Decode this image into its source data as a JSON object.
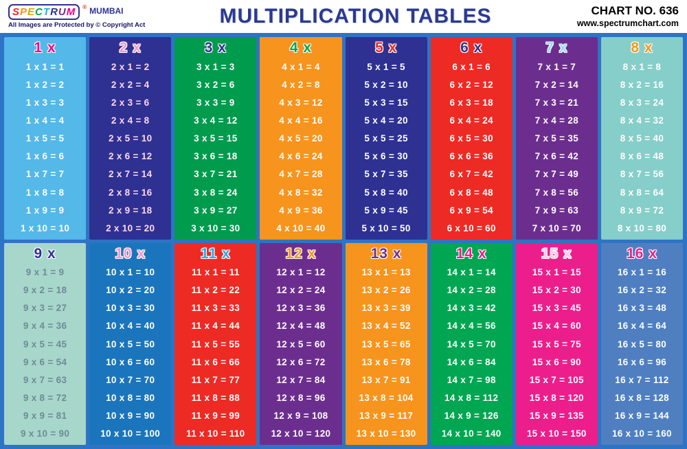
{
  "header": {
    "brand": "SPECTRUM",
    "brand_reg": "®",
    "brand_sub": "MUMBAI",
    "brand_letters": [
      {
        "ch": "S",
        "color": "#EE2A24"
      },
      {
        "ch": "P",
        "color": "#F7941D"
      },
      {
        "ch": "E",
        "color": "#D6A800"
      },
      {
        "ch": "C",
        "color": "#00A651"
      },
      {
        "ch": "T",
        "color": "#29ABE2"
      },
      {
        "ch": "R",
        "color": "#2E3192"
      },
      {
        "ch": "U",
        "color": "#6C2E8E"
      },
      {
        "ch": "M",
        "color": "#EC008C"
      }
    ],
    "copyright": "All Images are Protected by © Copyright Act",
    "title": "MULTIPLICATION TABLES",
    "chart_no": "CHART NO. 636",
    "website": "www.spectrumchart.com"
  },
  "colors": {
    "poster_background": "#2E74C4",
    "header_background": "#FFFFFF",
    "title_color": "#2B3990"
  },
  "tables": [
    {
      "label": "1 x",
      "bg": "#54B8E9",
      "header_color": "#EC008C",
      "text_color": "#FFFFFF",
      "rows": [
        "1 x 1 = 1",
        "1 x 2 = 2",
        "1 x 3 = 3",
        "1 x 4 = 4",
        "1 x 5 = 5",
        "1 x 6 = 6",
        "1 x 7 = 7",
        "1 x 8 = 8",
        "1 x 9 = 9",
        "1 x 10 = 10"
      ]
    },
    {
      "label": "2 x",
      "bg": "#2E3192",
      "header_color": "#F498C5",
      "text_color": "#FFD7EC",
      "rows": [
        "2 x 1 = 2",
        "2 x 2 = 4",
        "2 x 3 = 6",
        "2 x 4 = 8",
        "2 x 5 = 10",
        "2 x 6 = 12",
        "2 x 7 = 14",
        "2 x 8 = 16",
        "2 x 9 = 18",
        "2 x 10 = 20"
      ]
    },
    {
      "label": "3 x",
      "bg": "#009B4D",
      "header_color": "#2E3192",
      "text_color": "#FFFFFF",
      "rows": [
        "3 x 1 = 3",
        "3 x 2 = 6",
        "3 x 3 = 9",
        "3 x 4 = 12",
        "3 x 5 = 15",
        "3 x 6 = 18",
        "3 x 7 = 21",
        "3 x 8 = 24",
        "3 x 9 = 27",
        "3 x 10 = 30"
      ]
    },
    {
      "label": "4 x",
      "bg": "#F7941D",
      "header_color": "#00A651",
      "text_color": "#FFFFFF",
      "rows": [
        "4 x 1 = 4",
        "4 x 2 = 8",
        "4 x 3 = 12",
        "4 x 4 = 16",
        "4 x 5 = 20",
        "4 x 6 = 24",
        "4 x 7 = 28",
        "4 x 8 = 32",
        "4 x 9 = 36",
        "4 x 10 = 40"
      ]
    },
    {
      "label": "5 x",
      "bg": "#2E3192",
      "header_color": "#EE2A24",
      "text_color": "#FFFFFF",
      "rows": [
        "5 x 1 = 5",
        "5 x 2 = 10",
        "5 x 3 = 15",
        "5 x 4 = 20",
        "5 x 5 = 25",
        "5 x 6 = 30",
        "5 x 7 = 35",
        "5 x 8 = 40",
        "5 x 9 = 45",
        "5 x 10 = 50"
      ]
    },
    {
      "label": "6 x",
      "bg": "#EE2A24",
      "header_color": "#2E3192",
      "text_color": "#FFFFFF",
      "rows": [
        "6 x 1 = 6",
        "6 x 2 = 12",
        "6 x 3 = 18",
        "6 x 4 = 24",
        "6 x 5 = 30",
        "6 x 6 = 36",
        "6 x 7 = 42",
        "6 x 8 = 48",
        "6 x 9 = 54",
        "6 x 10 = 60"
      ]
    },
    {
      "label": "7 x",
      "bg": "#6C2E8E",
      "header_color": "#8ED8F8",
      "text_color": "#FFFFFF",
      "rows": [
        "7 x 1 = 7",
        "7 x 2 = 14",
        "7 x 3 = 21",
        "7 x 4 = 28",
        "7 x 5 = 35",
        "7 x 6 = 42",
        "7 x 7 = 49",
        "7 x 8 = 56",
        "7 x 9 = 63",
        "7 x 10 = 70"
      ]
    },
    {
      "label": "8 x",
      "bg": "#86CEC9",
      "header_color": "#F7941D",
      "text_color": "#FFFFFF",
      "rows": [
        "8 x 1 = 8",
        "8 x 2 = 16",
        "8 x 3 = 24",
        "8 x 4 = 32",
        "8 x 5 = 40",
        "8 x 6 = 48",
        "8 x 7 = 56",
        "8 x 8 = 64",
        "8 x 9 = 72",
        "8 x 10 = 80"
      ]
    },
    {
      "label": "9 x",
      "bg": "#A7D6CB",
      "header_color": "#2E3192",
      "text_color": "#6E8B96",
      "rows": [
        "9 x 1 = 9",
        "9 x 2 = 18",
        "9 x 3 = 27",
        "9 x 4 = 36",
        "9 x 5 = 45",
        "9 x 6 = 54",
        "9 x 7 = 63",
        "9 x 8 = 72",
        "9 x 9 = 81",
        "9 x 10 = 90"
      ]
    },
    {
      "label": "10 x",
      "bg": "#1B75BC",
      "header_color": "#F498C5",
      "text_color": "#FFFFFF",
      "rows": [
        "10 x 1 = 10",
        "10 x 2 = 20",
        "10 x 3 = 30",
        "10 x 4 = 40",
        "10 x 5 = 50",
        "10 x 6 = 60",
        "10 x 7 = 70",
        "10 x 8 = 80",
        "10 x 9 = 90",
        "10 x 10 = 100"
      ]
    },
    {
      "label": "11 x",
      "bg": "#EE2A24",
      "header_color": "#29ABE2",
      "text_color": "#FFFFFF",
      "rows": [
        "11 x 1 = 11",
        "11 x 2 = 22",
        "11 x 3 = 33",
        "11 x 4 = 44",
        "11 x 5 = 55",
        "11 x 6 = 66",
        "11 x 7 = 77",
        "11 x 8 = 88",
        "11 x 9 = 99",
        "11 x 10 = 110"
      ]
    },
    {
      "label": "12 x",
      "bg": "#6C2E8E",
      "header_color": "#F7941D",
      "text_color": "#FFFFFF",
      "rows": [
        "12 x 1 = 12",
        "12 x 2 = 24",
        "12 x 3 = 36",
        "12 x 4 = 48",
        "12 x 5 = 60",
        "12 x 6 = 72",
        "12 x 7 = 84",
        "12 x 8 = 96",
        "12 x 9 = 108",
        "12 x 10 = 120"
      ]
    },
    {
      "label": "13 x",
      "bg": "#F7941D",
      "header_color": "#6C2E8E",
      "text_color": "#FFFFFF",
      "rows": [
        "13 x 1 = 13",
        "13 x 2 = 26",
        "13 x 3 = 39",
        "13 x 4 = 52",
        "13 x 5 = 65",
        "13 x 6 = 78",
        "13 x 7 = 91",
        "13 x 8 = 104",
        "13 x 9 = 117",
        "13 x 10 = 130"
      ]
    },
    {
      "label": "14 x",
      "bg": "#00A651",
      "header_color": "#EC1E8C",
      "text_color": "#FFFFFF",
      "rows": [
        "14 x 1 = 14",
        "14 x 2 = 28",
        "14 x 3 = 42",
        "14 x 4 = 56",
        "14 x 5 = 70",
        "14 x 6 = 84",
        "14 x 7 = 98",
        "14 x 8 = 112",
        "14 x 9 = 126",
        "14 x 10 = 140"
      ]
    },
    {
      "label": "15 x",
      "bg": "#EC1E8C",
      "header_color": "#F9C9E5",
      "text_color": "#FFFFFF",
      "rows": [
        "15 x 1 = 15",
        "15 x 2 = 30",
        "15 x 3 = 45",
        "15 x 4 = 60",
        "15 x 5 = 75",
        "15 x 6 = 90",
        "15 x 7 = 105",
        "15 x 8 = 120",
        "15 x 9 = 135",
        "15 x 10 = 150"
      ]
    },
    {
      "label": "16 x",
      "bg": "#4F7FC1",
      "header_color": "#EC1E8C",
      "text_color": "#FFFFFF",
      "rows": [
        "16 x 1 = 16",
        "16 x 2 = 32",
        "16 x 3 = 48",
        "16 x 4 = 64",
        "16 x 5 = 80",
        "16 x 6 = 96",
        "16 x 7 = 112",
        "16 x 8 = 128",
        "16 x 9 = 144",
        "16 x 10 = 160"
      ]
    }
  ]
}
